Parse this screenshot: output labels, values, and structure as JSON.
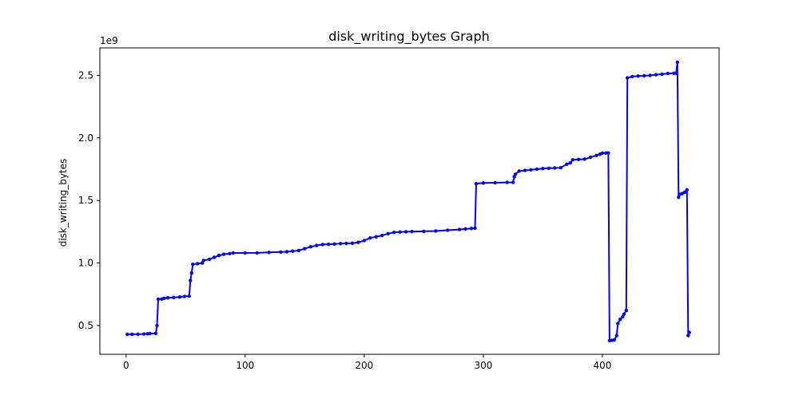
{
  "chart_data": {
    "type": "line",
    "title": "disk_writing_bytes Graph",
    "xlabel": "",
    "ylabel": "disk_writing_bytes",
    "y_offset_label": "1e9",
    "xlim": [
      -22,
      498
    ],
    "ylim": [
      270000000,
      2720000000
    ],
    "x_ticks": [
      0,
      100,
      200,
      300,
      400
    ],
    "x_tick_labels": [
      "0",
      "100",
      "200",
      "300",
      "400"
    ],
    "y_ticks": [
      500000000,
      1000000000,
      1500000000,
      2000000000,
      2500000000
    ],
    "y_tick_labels": [
      "0.5",
      "1.0",
      "1.5",
      "2.0",
      "2.5"
    ],
    "grid": false,
    "legend": "none",
    "colors": {
      "series": "#0000ff"
    },
    "series": [
      {
        "marker": "dot",
        "points": [
          [
            1,
            430000000
          ],
          [
            5,
            430000000
          ],
          [
            10,
            431000000
          ],
          [
            15,
            432000000
          ],
          [
            18,
            434000000
          ],
          [
            20,
            436000000
          ],
          [
            25,
            437000000
          ],
          [
            26,
            500000000
          ],
          [
            27,
            710000000
          ],
          [
            30,
            712000000
          ],
          [
            32,
            718000000
          ],
          [
            35,
            722000000
          ],
          [
            40,
            724000000
          ],
          [
            45,
            728000000
          ],
          [
            49,
            733000000
          ],
          [
            53,
            736000000
          ],
          [
            54,
            860000000
          ],
          [
            55,
            920000000
          ],
          [
            56,
            990000000
          ],
          [
            60,
            995000000
          ],
          [
            64,
            1000000000
          ],
          [
            65,
            1020000000
          ],
          [
            70,
            1030000000
          ],
          [
            74,
            1045000000
          ],
          [
            78,
            1060000000
          ],
          [
            82,
            1070000000
          ],
          [
            87,
            1075000000
          ],
          [
            90,
            1080000000
          ],
          [
            100,
            1080000000
          ],
          [
            110,
            1081000000
          ],
          [
            120,
            1085000000
          ],
          [
            130,
            1088000000
          ],
          [
            135,
            1090000000
          ],
          [
            140,
            1095000000
          ],
          [
            145,
            1100000000
          ],
          [
            150,
            1115000000
          ],
          [
            155,
            1130000000
          ],
          [
            160,
            1140000000
          ],
          [
            165,
            1148000000
          ],
          [
            170,
            1150000000
          ],
          [
            175,
            1152000000
          ],
          [
            180,
            1155000000
          ],
          [
            185,
            1157000000
          ],
          [
            190,
            1158000000
          ],
          [
            195,
            1165000000
          ],
          [
            200,
            1180000000
          ],
          [
            205,
            1200000000
          ],
          [
            210,
            1210000000
          ],
          [
            215,
            1220000000
          ],
          [
            220,
            1235000000
          ],
          [
            225,
            1245000000
          ],
          [
            230,
            1248000000
          ],
          [
            235,
            1250000000
          ],
          [
            240,
            1251000000
          ],
          [
            250,
            1253000000
          ],
          [
            260,
            1256000000
          ],
          [
            270,
            1262000000
          ],
          [
            280,
            1268000000
          ],
          [
            285,
            1272000000
          ],
          [
            290,
            1276000000
          ],
          [
            293,
            1278000000
          ],
          [
            294,
            1635000000
          ],
          [
            300,
            1640000000
          ],
          [
            310,
            1642000000
          ],
          [
            320,
            1644000000
          ],
          [
            325,
            1645000000
          ],
          [
            326,
            1690000000
          ],
          [
            327,
            1710000000
          ],
          [
            330,
            1735000000
          ],
          [
            335,
            1740000000
          ],
          [
            340,
            1745000000
          ],
          [
            345,
            1750000000
          ],
          [
            350,
            1755000000
          ],
          [
            355,
            1758000000
          ],
          [
            360,
            1760000000
          ],
          [
            365,
            1762000000
          ],
          [
            370,
            1790000000
          ],
          [
            373,
            1800000000
          ],
          [
            375,
            1825000000
          ],
          [
            380,
            1828000000
          ],
          [
            385,
            1830000000
          ],
          [
            390,
            1845000000
          ],
          [
            395,
            1860000000
          ],
          [
            398,
            1870000000
          ],
          [
            400,
            1878000000
          ],
          [
            403,
            1880000000
          ],
          [
            405,
            1880000000
          ],
          [
            406,
            380000000
          ],
          [
            408,
            382000000
          ],
          [
            410,
            385000000
          ],
          [
            412,
            420000000
          ],
          [
            413,
            515000000
          ],
          [
            415,
            550000000
          ],
          [
            417,
            570000000
          ],
          [
            418,
            590000000
          ],
          [
            420,
            620000000
          ],
          [
            421,
            2480000000
          ],
          [
            425,
            2490000000
          ],
          [
            430,
            2495000000
          ],
          [
            435,
            2497000000
          ],
          [
            440,
            2500000000
          ],
          [
            445,
            2505000000
          ],
          [
            450,
            2510000000
          ],
          [
            455,
            2515000000
          ],
          [
            460,
            2517000000
          ],
          [
            462,
            2518000000
          ],
          [
            463,
            2605000000
          ],
          [
            464,
            1525000000
          ],
          [
            465,
            1550000000
          ],
          [
            467,
            1555000000
          ],
          [
            469,
            1565000000
          ],
          [
            471,
            1585000000
          ],
          [
            472,
            420000000
          ],
          [
            473,
            445000000
          ]
        ]
      }
    ]
  }
}
